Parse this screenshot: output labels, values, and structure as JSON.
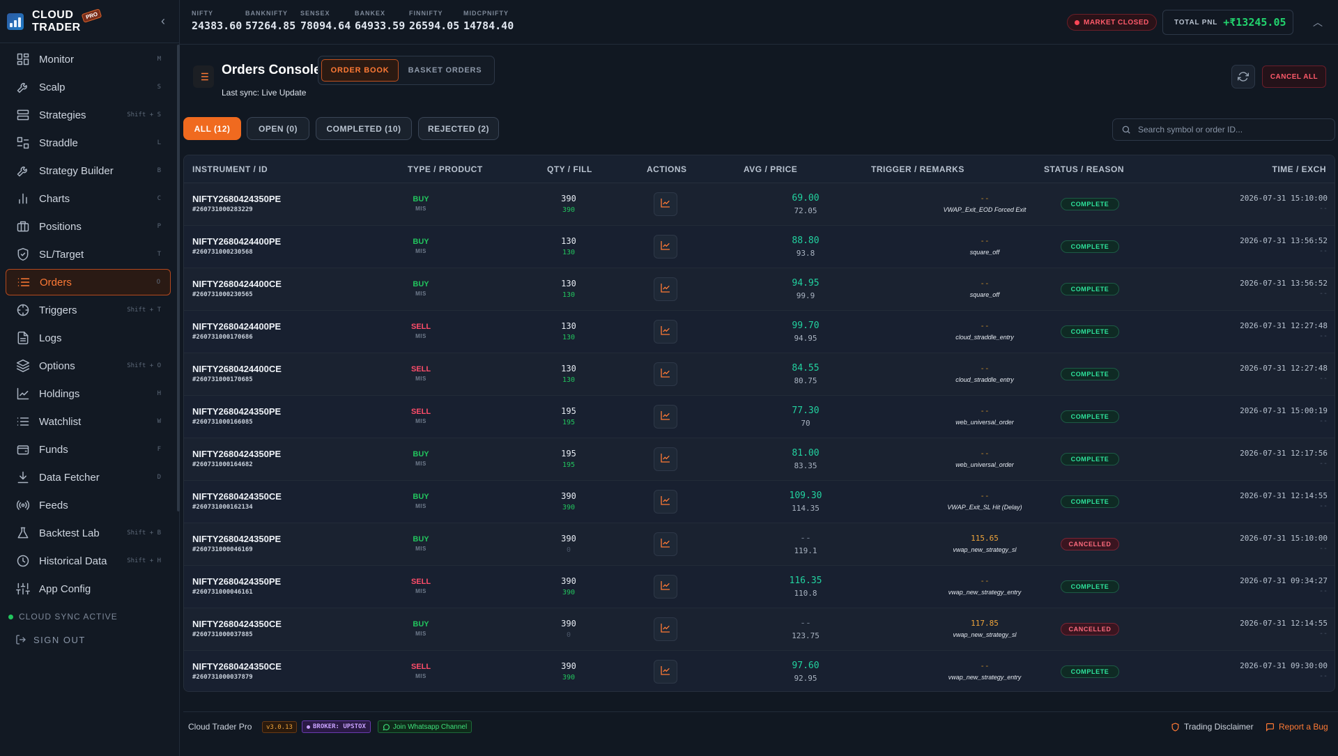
{
  "brand": {
    "line1": "CLOUD",
    "line2": "TRADER",
    "badge": "PRO"
  },
  "colors": {
    "accent": "#ff7a35",
    "buy": "#22c55e",
    "sell": "#ff4d6a",
    "complete": "#2ee59d",
    "cancelled": "#ff6b7e",
    "pnl": "#22d36e"
  },
  "nav": [
    {
      "label": "Monitor",
      "shortcut": "M",
      "icon": "grid-icon"
    },
    {
      "label": "Scalp",
      "shortcut": "S",
      "icon": "lightning-icon"
    },
    {
      "label": "Strategies",
      "shortcut": "Shift + S",
      "icon": "server-icon"
    },
    {
      "label": "Straddle",
      "shortcut": "L",
      "icon": "straddle-icon"
    },
    {
      "label": "Strategy Builder",
      "shortcut": "B",
      "icon": "wrench-icon"
    },
    {
      "label": "Charts",
      "shortcut": "C",
      "icon": "bar-chart-icon"
    },
    {
      "label": "Positions",
      "shortcut": "P",
      "icon": "briefcase-icon"
    },
    {
      "label": "SL/Target",
      "shortcut": "T",
      "icon": "shield-icon"
    },
    {
      "label": "Orders",
      "shortcut": "O",
      "icon": "list-icon",
      "active": true
    },
    {
      "label": "Triggers",
      "shortcut": "Shift + T",
      "icon": "crosshair-icon"
    },
    {
      "label": "Logs",
      "shortcut": "",
      "icon": "document-icon"
    },
    {
      "label": "Options",
      "shortcut": "Shift + O",
      "icon": "layers-icon"
    },
    {
      "label": "Holdings",
      "shortcut": "H",
      "icon": "trend-icon"
    },
    {
      "label": "Watchlist",
      "shortcut": "W",
      "icon": "watchlist-icon"
    },
    {
      "label": "Funds",
      "shortcut": "F",
      "icon": "wallet-icon"
    },
    {
      "label": "Data Fetcher",
      "shortcut": "D",
      "icon": "download-icon"
    },
    {
      "label": "Feeds",
      "shortcut": "",
      "icon": "broadcast-icon"
    },
    {
      "label": "Backtest Lab",
      "shortcut": "Shift + B",
      "icon": "flask-icon"
    },
    {
      "label": "Historical Data",
      "shortcut": "Shift + H",
      "icon": "history-icon"
    },
    {
      "label": "App Config",
      "shortcut": "",
      "icon": "sliders-icon"
    }
  ],
  "sidebar_footer": {
    "sync": "CLOUD SYNC ACTIVE",
    "signout": "SIGN OUT"
  },
  "indices": [
    {
      "name": "NIFTY",
      "value": "24383.60"
    },
    {
      "name": "BANKNIFTY",
      "value": "57264.85"
    },
    {
      "name": "SENSEX",
      "value": "78094.64"
    },
    {
      "name": "BANKEX",
      "value": "64933.59"
    },
    {
      "name": "FINNIFTY",
      "value": "26594.05"
    },
    {
      "name": "MIDCPNIFTY",
      "value": "14784.40"
    }
  ],
  "market_status": "MARKET CLOSED",
  "pnl": {
    "label": "TOTAL PNL",
    "value": "+₹13245.05"
  },
  "console": {
    "title": "Orders Console",
    "subtitle": "Last sync: Live Update",
    "tab_orderbook": "ORDER BOOK",
    "tab_basket": "BASKET ORDERS",
    "cancel_all": "CANCEL ALL"
  },
  "filters": {
    "all": "ALL (12)",
    "open": "OPEN (0)",
    "completed": "COMPLETED (10)",
    "rejected": "REJECTED (2)"
  },
  "search": {
    "placeholder": "Search symbol or order ID..."
  },
  "columns": {
    "instrument": "INSTRUMENT / ID",
    "type": "TYPE / PRODUCT",
    "qty": "QTY / FILL",
    "actions": "ACTIONS",
    "avg": "AVG / PRICE",
    "trigger": "TRIGGER / REMARKS",
    "status": "STATUS / REASON",
    "time": "TIME / EXCH"
  },
  "orders": [
    {
      "symbol": "NIFTY2680424350PE",
      "id": "#260731000283229",
      "side": "BUY",
      "product": "MIS",
      "qty": "390",
      "fill": "390",
      "avg": "69.00",
      "price": "72.05",
      "trigger": "--",
      "remarks": "VWAP_Exit_EOD Forced Exit",
      "status": "COMPLETE",
      "time": "2026-07-31 15:10:00",
      "exch": "--"
    },
    {
      "symbol": "NIFTY2680424400PE",
      "id": "#260731000230568",
      "side": "BUY",
      "product": "MIS",
      "qty": "130",
      "fill": "130",
      "avg": "88.80",
      "price": "93.8",
      "trigger": "--",
      "remarks": "square_off",
      "status": "COMPLETE",
      "time": "2026-07-31 13:56:52",
      "exch": "--"
    },
    {
      "symbol": "NIFTY2680424400CE",
      "id": "#260731000230565",
      "side": "BUY",
      "product": "MIS",
      "qty": "130",
      "fill": "130",
      "avg": "94.95",
      "price": "99.9",
      "trigger": "--",
      "remarks": "square_off",
      "status": "COMPLETE",
      "time": "2026-07-31 13:56:52",
      "exch": "--"
    },
    {
      "symbol": "NIFTY2680424400PE",
      "id": "#260731000170686",
      "side": "SELL",
      "product": "MIS",
      "qty": "130",
      "fill": "130",
      "avg": "99.70",
      "price": "94.95",
      "trigger": "--",
      "remarks": "cloud_straddle_entry",
      "status": "COMPLETE",
      "time": "2026-07-31 12:27:48",
      "exch": "--"
    },
    {
      "symbol": "NIFTY2680424400CE",
      "id": "#260731000170685",
      "side": "SELL",
      "product": "MIS",
      "qty": "130",
      "fill": "130",
      "avg": "84.55",
      "price": "80.75",
      "trigger": "--",
      "remarks": "cloud_straddle_entry",
      "status": "COMPLETE",
      "time": "2026-07-31 12:27:48",
      "exch": "--"
    },
    {
      "symbol": "NIFTY2680424350PE",
      "id": "#260731000166085",
      "side": "SELL",
      "product": "MIS",
      "qty": "195",
      "fill": "195",
      "avg": "77.30",
      "price": "70",
      "trigger": "--",
      "remarks": "web_universal_order",
      "status": "COMPLETE",
      "time": "2026-07-31 15:00:19",
      "exch": "--"
    },
    {
      "symbol": "NIFTY2680424350PE",
      "id": "#260731000164682",
      "side": "BUY",
      "product": "MIS",
      "qty": "195",
      "fill": "195",
      "avg": "81.00",
      "price": "83.35",
      "trigger": "--",
      "remarks": "web_universal_order",
      "status": "COMPLETE",
      "time": "2026-07-31 12:17:56",
      "exch": "--"
    },
    {
      "symbol": "NIFTY2680424350CE",
      "id": "#260731000162134",
      "side": "BUY",
      "product": "MIS",
      "qty": "390",
      "fill": "390",
      "avg": "109.30",
      "price": "114.35",
      "trigger": "--",
      "remarks": "VWAP_Exit_SL Hit (Delay)",
      "status": "COMPLETE",
      "time": "2026-07-31 12:14:55",
      "exch": "--"
    },
    {
      "symbol": "NIFTY2680424350PE",
      "id": "#260731000046169",
      "side": "BUY",
      "product": "MIS",
      "qty": "390",
      "fill": "0",
      "avg": "--",
      "price": "119.1",
      "trigger": "115.65",
      "remarks": "vwap_new_strategy_sl",
      "status": "CANCELLED",
      "time": "2026-07-31 15:10:00",
      "exch": "--"
    },
    {
      "symbol": "NIFTY2680424350PE",
      "id": "#260731000046161",
      "side": "SELL",
      "product": "MIS",
      "qty": "390",
      "fill": "390",
      "avg": "116.35",
      "price": "110.8",
      "trigger": "--",
      "remarks": "vwap_new_strategy_entry",
      "status": "COMPLETE",
      "time": "2026-07-31 09:34:27",
      "exch": "--"
    },
    {
      "symbol": "NIFTY2680424350CE",
      "id": "#260731000037885",
      "side": "BUY",
      "product": "MIS",
      "qty": "390",
      "fill": "0",
      "avg": "--",
      "price": "123.75",
      "trigger": "117.85",
      "remarks": "vwap_new_strategy_sl",
      "status": "CANCELLED",
      "time": "2026-07-31 12:14:55",
      "exch": "--"
    },
    {
      "symbol": "NIFTY2680424350CE",
      "id": "#260731000037879",
      "side": "SELL",
      "product": "MIS",
      "qty": "390",
      "fill": "390",
      "avg": "97.60",
      "price": "92.95",
      "trigger": "--",
      "remarks": "vwap_new_strategy_entry",
      "status": "COMPLETE",
      "time": "2026-07-31 09:30:00",
      "exch": "--"
    }
  ],
  "footer": {
    "app": "Cloud Trader Pro",
    "version": "v3.0.13",
    "broker": "BROKER: UPSTOX",
    "whatsapp": "Join Whatsapp Channel",
    "disclaimer": "Trading Disclaimer",
    "bug": "Report a Bug"
  }
}
